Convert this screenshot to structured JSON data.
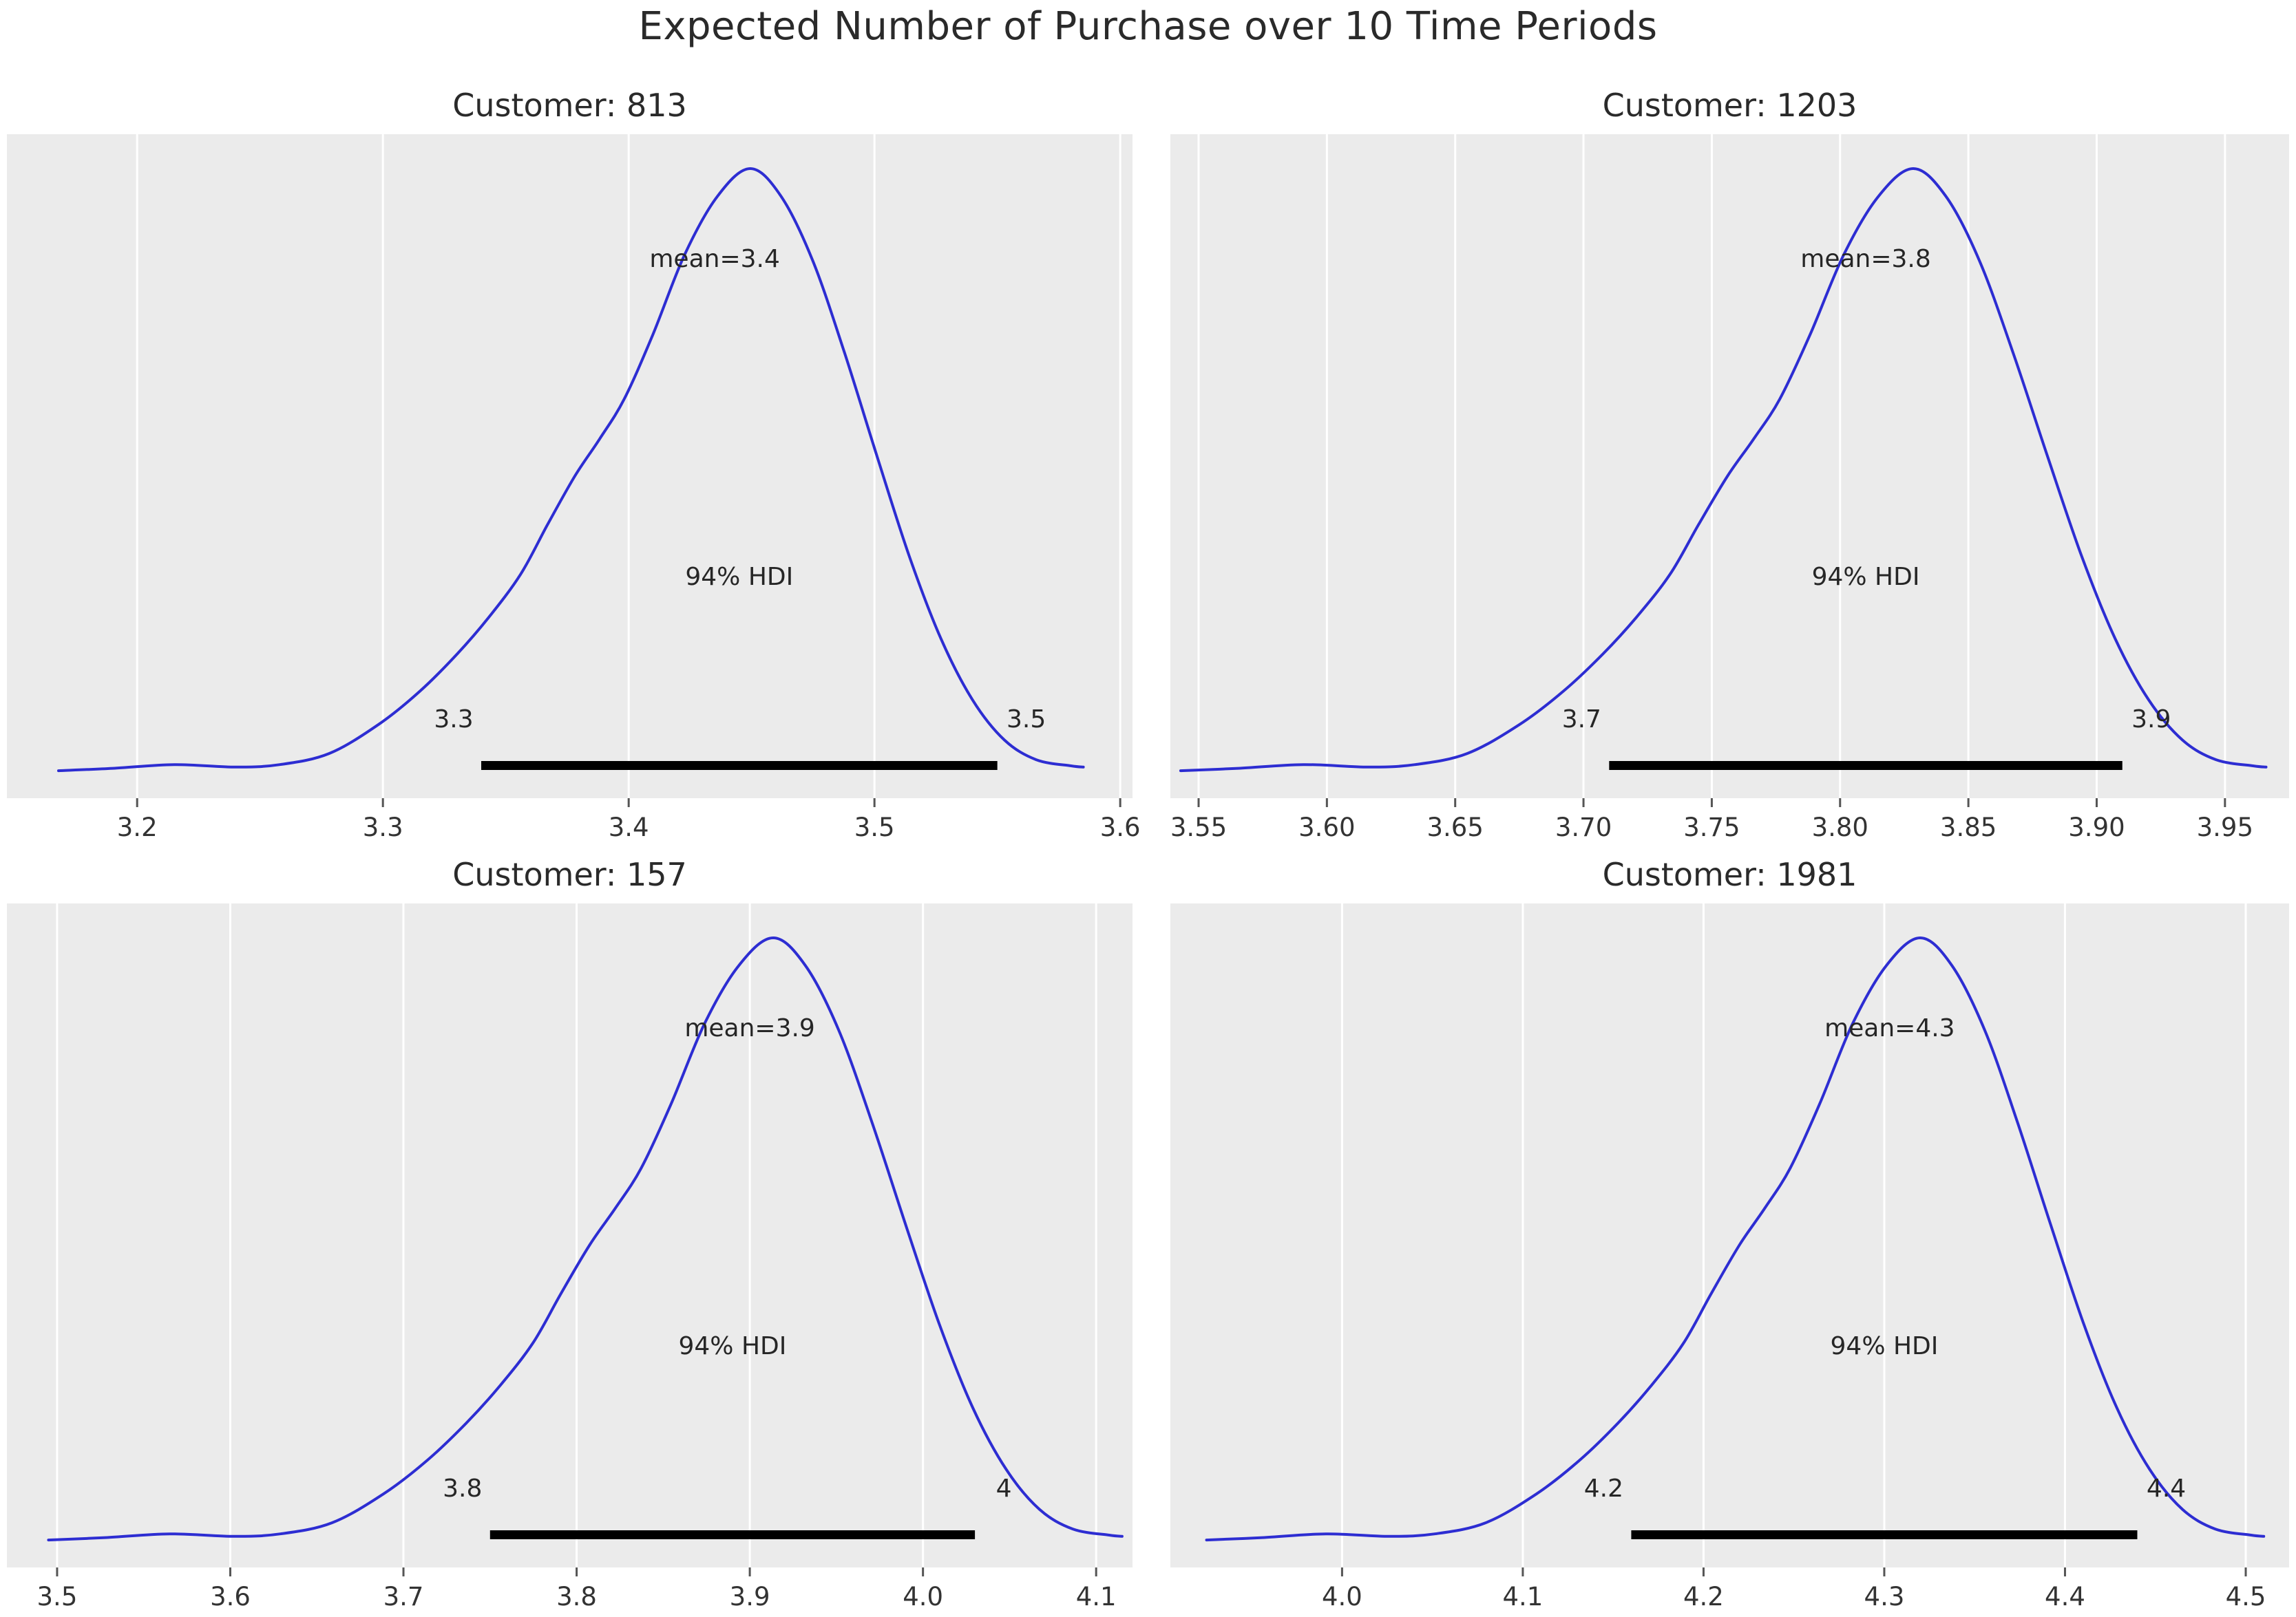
{
  "page": {
    "title": "Expected Number of Purchase over 10 Time Periods"
  },
  "style": {
    "curve_color": "#2d2dd2",
    "plot_bg": "#ebebeb",
    "grid_color": "#ffffff",
    "hdi_bar_color": "#000000",
    "text_color": "#262626",
    "tick_label_color": "#333333",
    "tick_mark_color": "#555555",
    "page_bg": "#ffffff"
  },
  "curve_profile": [
    [
      0.0,
      0.02
    ],
    [
      0.053,
      0.024
    ],
    [
      0.113,
      0.03
    ],
    [
      0.173,
      0.026
    ],
    [
      0.216,
      0.03
    ],
    [
      0.264,
      0.048
    ],
    [
      0.312,
      0.095
    ],
    [
      0.353,
      0.15
    ],
    [
      0.389,
      0.21
    ],
    [
      0.42,
      0.27
    ],
    [
      0.451,
      0.34
    ],
    [
      0.477,
      0.42
    ],
    [
      0.504,
      0.5
    ],
    [
      0.528,
      0.56
    ],
    [
      0.552,
      0.625
    ],
    [
      0.58,
      0.73
    ],
    [
      0.611,
      0.86
    ],
    [
      0.643,
      0.955
    ],
    [
      0.675,
      1.0
    ],
    [
      0.705,
      0.955
    ],
    [
      0.736,
      0.85
    ],
    [
      0.767,
      0.7
    ],
    [
      0.799,
      0.53
    ],
    [
      0.83,
      0.37
    ],
    [
      0.861,
      0.235
    ],
    [
      0.892,
      0.135
    ],
    [
      0.923,
      0.07
    ],
    [
      0.954,
      0.038
    ],
    [
      0.988,
      0.028
    ],
    [
      1.0,
      0.026
    ]
  ],
  "chart_data": [
    {
      "type": "line",
      "kind": "posterior-kde",
      "title": "Customer: 813",
      "mean_label": "mean=3.4",
      "mean_x": 3.435,
      "xlim": [
        3.147,
        3.605
      ],
      "curve_domain": [
        3.168,
        3.585
      ],
      "tick_values": [
        3.2,
        3.3,
        3.4,
        3.5,
        3.6
      ],
      "tick_labels": [
        "3.2",
        "3.3",
        "3.4",
        "3.5",
        "3.6"
      ],
      "hdi": {
        "label": "94% HDI",
        "lo": 3.34,
        "hi": 3.55,
        "lo_label": "3.3",
        "hi_label": "3.5"
      }
    },
    {
      "type": "line",
      "kind": "posterior-kde",
      "title": "Customer: 1203",
      "mean_label": "mean=3.8",
      "mean_x": 3.81,
      "xlim": [
        3.539,
        3.975
      ],
      "curve_domain": [
        3.543,
        3.966
      ],
      "tick_values": [
        3.55,
        3.6,
        3.65,
        3.7,
        3.75,
        3.8,
        3.85,
        3.9,
        3.95
      ],
      "tick_labels": [
        "3.55",
        "3.60",
        "3.65",
        "3.70",
        "3.75",
        "3.80",
        "3.85",
        "3.90",
        "3.95"
      ],
      "hdi": {
        "label": "94% HDI",
        "lo": 3.71,
        "hi": 3.91,
        "lo_label": "3.7",
        "hi_label": "3.9"
      }
    },
    {
      "type": "line",
      "kind": "posterior-kde",
      "title": "Customer: 157",
      "mean_label": "mean=3.9",
      "mean_x": 3.9,
      "xlim": [
        3.471,
        4.121
      ],
      "curve_domain": [
        3.495,
        4.115
      ],
      "tick_values": [
        3.5,
        3.6,
        3.7,
        3.8,
        3.9,
        4.0,
        4.1
      ],
      "tick_labels": [
        "3.5",
        "3.6",
        "3.7",
        "3.8",
        "3.9",
        "4.0",
        "4.1"
      ],
      "hdi": {
        "label": "94% HDI",
        "lo": 3.75,
        "hi": 4.03,
        "lo_label": "3.8",
        "hi_label": "4"
      }
    },
    {
      "type": "line",
      "kind": "posterior-kde",
      "title": "Customer: 1981",
      "mean_label": "mean=4.3",
      "mean_x": 4.303,
      "xlim": [
        3.905,
        4.524
      ],
      "curve_domain": [
        3.925,
        4.51
      ],
      "tick_values": [
        4.0,
        4.1,
        4.2,
        4.3,
        4.4,
        4.5
      ],
      "tick_labels": [
        "4.0",
        "4.1",
        "4.2",
        "4.3",
        "4.4",
        "4.5"
      ],
      "hdi": {
        "label": "94% HDI",
        "lo": 4.16,
        "hi": 4.44,
        "lo_label": "4.2",
        "hi_label": "4.4"
      }
    }
  ]
}
